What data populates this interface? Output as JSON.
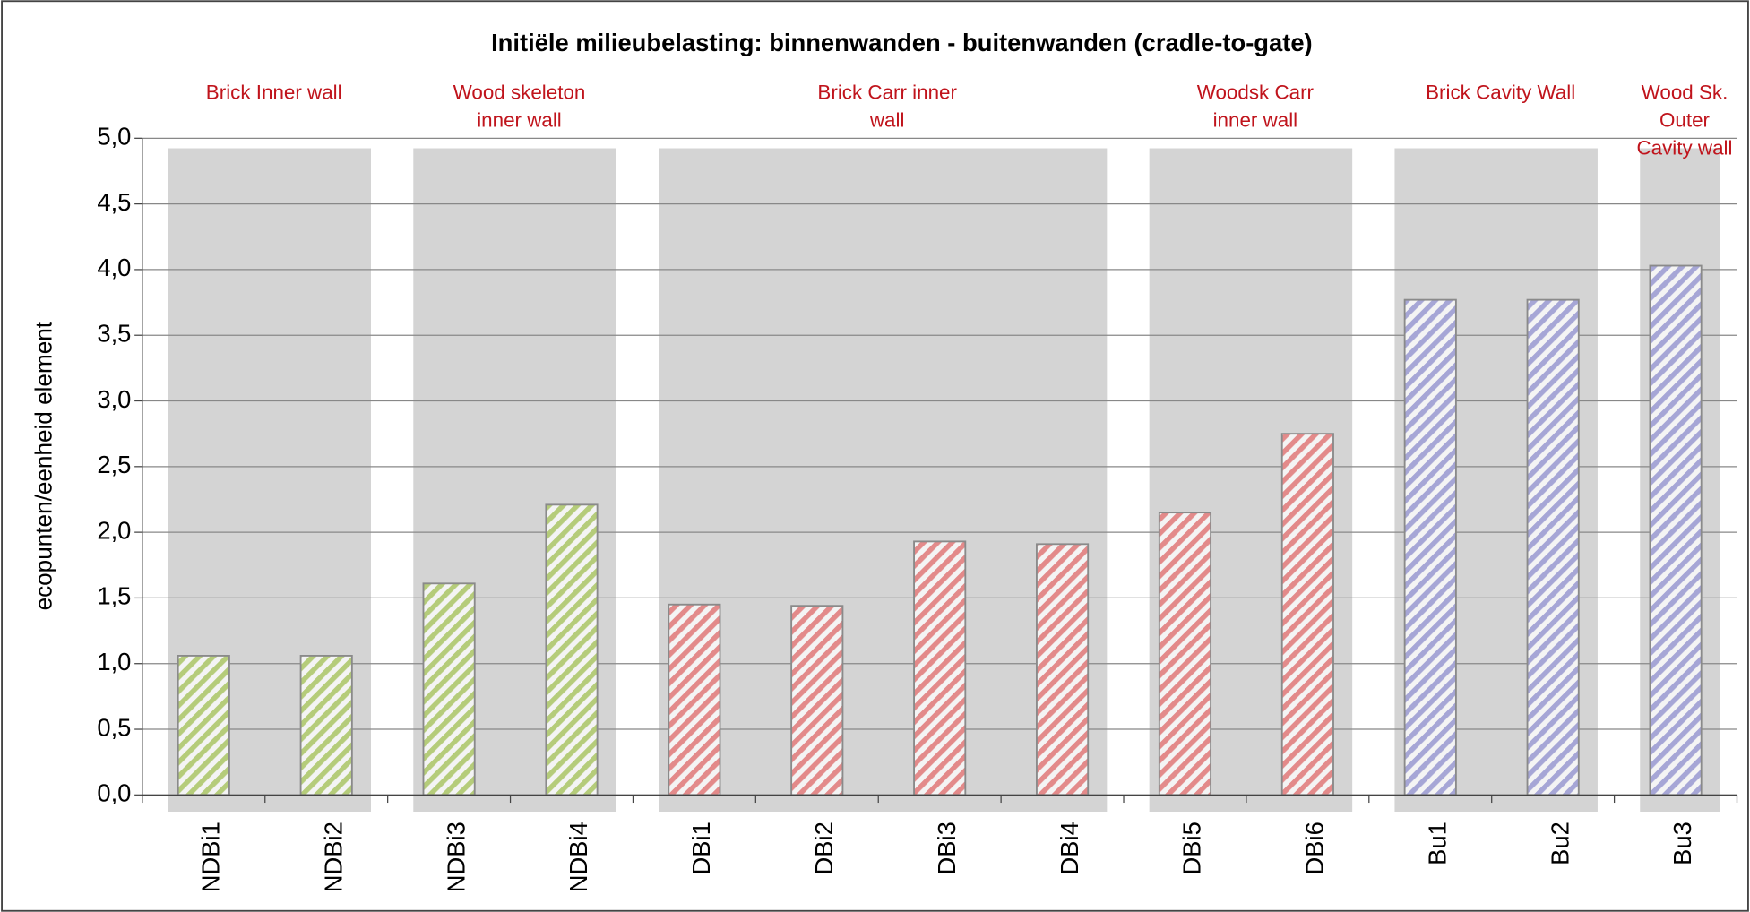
{
  "chart_data": {
    "type": "bar",
    "title": "Initiële milieubelasting: binnenwanden - buitenwanden (cradle-to-gate)",
    "y_label": "ecopunten/eenheid element",
    "ylim": [
      0,
      5
    ],
    "yticks": [
      {
        "value": 0,
        "label": "0,0"
      },
      {
        "value": 0.5,
        "label": "0,5"
      },
      {
        "value": 1,
        "label": "1,0"
      },
      {
        "value": 1.5,
        "label": "1,5"
      },
      {
        "value": 2,
        "label": "2,0"
      },
      {
        "value": 2.5,
        "label": "2,5"
      },
      {
        "value": 3,
        "label": "3,0"
      },
      {
        "value": 3.5,
        "label": "3,5"
      },
      {
        "value": 4,
        "label": "4,0"
      },
      {
        "value": 4.5,
        "label": "4,5"
      },
      {
        "value": 5,
        "label": "5,0"
      }
    ],
    "grid": true,
    "series": [
      {
        "name": [
          "Brick Inner wall"
        ],
        "color": "#b5cc7a",
        "categories": [
          "NDBi1",
          "NDBi2"
        ],
        "values": [
          1.06,
          1.06
        ]
      },
      {
        "name": [
          "Wood skeleton",
          "inner wall"
        ],
        "color": "#b5cc7a",
        "categories": [
          "NDBi3",
          "NDBi4"
        ],
        "values": [
          1.61,
          2.21
        ]
      },
      {
        "name": [
          "Brick Carr inner",
          "wall"
        ],
        "color": "#e38a8a",
        "categories": [
          "DBi1",
          "DBi2",
          "DBi3",
          "DBi4"
        ],
        "values": [
          1.45,
          1.44,
          1.93,
          1.91
        ]
      },
      {
        "name": [
          "Woodsk Carr",
          "inner wall"
        ],
        "color": "#e38a8a",
        "categories": [
          "DBi5",
          "DBi6"
        ],
        "values": [
          2.15,
          2.75
        ]
      },
      {
        "name": [
          "Brick Cavity Wall"
        ],
        "color": "#a6a6d6",
        "categories": [
          "Bu1",
          "Bu2"
        ],
        "values": [
          3.77,
          3.77
        ]
      },
      {
        "name": [
          "Wood Sk.",
          "Outer",
          "Cavity wall"
        ],
        "color": "#a6a6d6",
        "categories": [
          "Bu3"
        ],
        "values": [
          4.03
        ]
      }
    ]
  }
}
